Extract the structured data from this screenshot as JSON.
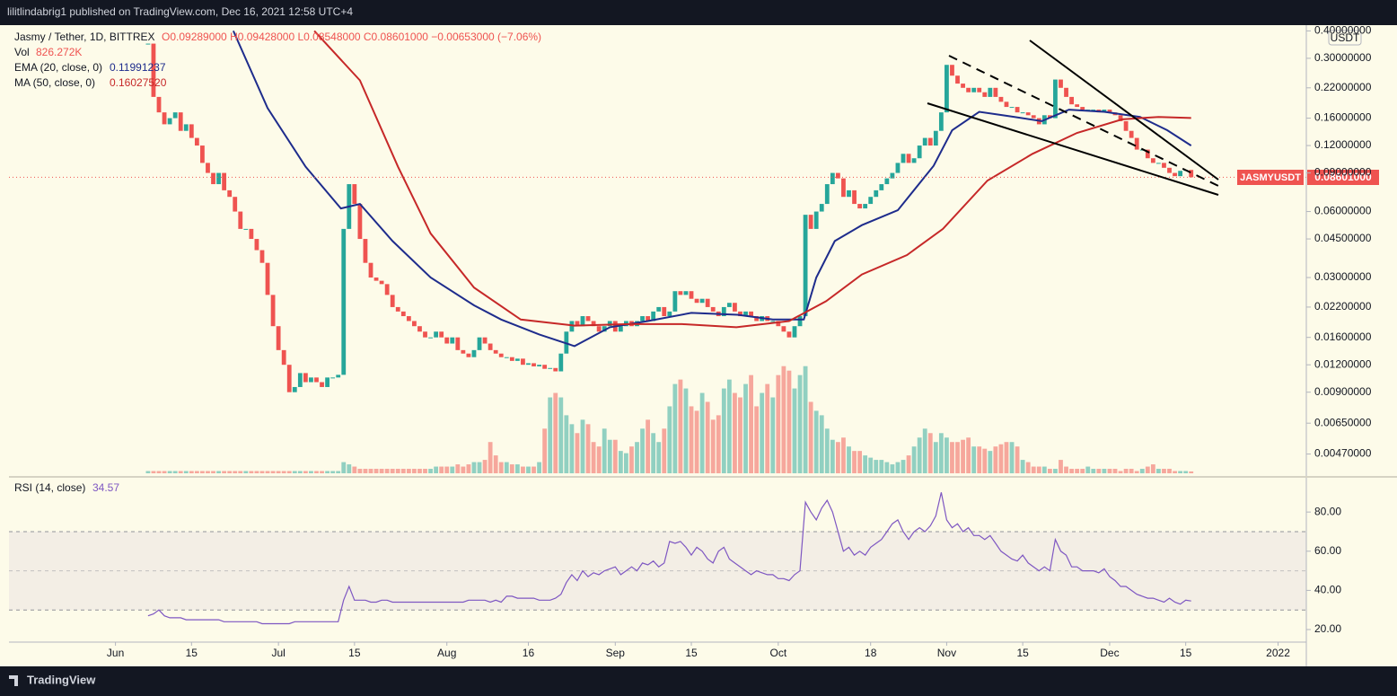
{
  "header": {
    "text": "lilitlindabrig1 published on TradingView.com, Dec 16, 2021 12:58 UTC+4"
  },
  "footer": {
    "brand": "TradingView"
  },
  "chart_data": [
    {
      "type": "candlestick",
      "legend": {
        "symbol": "Jasmy / Tether, 1D, BITTREX",
        "ohlc": "O0.09289000 H0.09428000 L0.08548000 C0.08601000 −0.00653000 (−7.06%)",
        "vol_name": "Vol",
        "vol_value": "826.272K"
      },
      "currency": "USDT",
      "price_label": {
        "symbol": "JASMYUSDT",
        "value": "0.08601000"
      },
      "y_scale": "log",
      "grid": false,
      "up_color": "#26a69a",
      "down_color": "#ef5350",
      "ylim": [
        0.00384,
        0.417
      ],
      "yticks": [
        {
          "value": 0.4,
          "label": "0.40000000"
        },
        {
          "value": 0.3,
          "label": "0.30000000"
        },
        {
          "value": 0.22,
          "label": "0.22000000"
        },
        {
          "value": 0.16,
          "label": "0.16000000"
        },
        {
          "value": 0.12,
          "label": "0.12000000"
        },
        {
          "value": 0.09,
          "label": "0.09000000"
        },
        {
          "value": 0.06,
          "label": "0.06000000"
        },
        {
          "value": 0.045,
          "label": "0.04500000"
        },
        {
          "value": 0.03,
          "label": "0.03000000"
        },
        {
          "value": 0.022,
          "label": "0.02200000"
        },
        {
          "value": 0.016,
          "label": "0.01600000"
        },
        {
          "value": 0.012,
          "label": "0.01200000"
        },
        {
          "value": 0.009,
          "label": "0.00900000"
        },
        {
          "value": 0.0065,
          "label": "0.00650000"
        },
        {
          "value": 0.0047,
          "label": "0.00470000"
        }
      ],
      "xlim": [
        -25.6,
        213.2
      ],
      "vlim": [
        0,
        200
      ],
      "close": [
        0.35,
        0.2,
        0.17,
        0.15,
        0.16,
        0.17,
        0.14,
        0.15,
        0.13,
        0.12,
        0.1,
        0.09,
        0.08,
        0.09,
        0.075,
        0.07,
        0.06,
        0.05,
        0.05,
        0.045,
        0.04,
        0.035,
        0.025,
        0.018,
        0.014,
        0.012,
        0.009,
        0.0095,
        0.011,
        0.01,
        0.0105,
        0.01,
        0.0095,
        0.0105,
        0.0105,
        0.0108,
        0.05,
        0.08,
        0.065,
        0.045,
        0.035,
        0.03,
        0.029,
        0.028,
        0.025,
        0.022,
        0.021,
        0.02,
        0.019,
        0.018,
        0.017,
        0.016,
        0.016,
        0.017,
        0.016,
        0.015,
        0.016,
        0.014,
        0.0135,
        0.013,
        0.014,
        0.016,
        0.015,
        0.014,
        0.0135,
        0.013,
        0.013,
        0.0125,
        0.0128,
        0.012,
        0.0122,
        0.0118,
        0.012,
        0.0115,
        0.0116,
        0.0112,
        0.0135,
        0.017,
        0.019,
        0.018,
        0.02,
        0.019,
        0.018,
        0.017,
        0.018,
        0.019,
        0.017,
        0.018,
        0.019,
        0.018,
        0.019,
        0.02,
        0.019,
        0.021,
        0.022,
        0.02,
        0.021,
        0.026,
        0.025,
        0.026,
        0.024,
        0.023,
        0.024,
        0.022,
        0.021,
        0.02,
        0.022,
        0.023,
        0.021,
        0.02,
        0.021,
        0.02,
        0.019,
        0.02,
        0.019,
        0.019,
        0.018,
        0.017,
        0.016,
        0.018,
        0.02,
        0.058,
        0.05,
        0.06,
        0.065,
        0.08,
        0.09,
        0.085,
        0.07,
        0.075,
        0.065,
        0.062,
        0.065,
        0.07,
        0.075,
        0.08,
        0.085,
        0.09,
        0.1,
        0.11,
        0.1,
        0.105,
        0.12,
        0.13,
        0.12,
        0.14,
        0.17,
        0.28,
        0.25,
        0.23,
        0.22,
        0.21,
        0.22,
        0.21,
        0.2,
        0.22,
        0.2,
        0.19,
        0.18,
        0.18,
        0.17,
        0.17,
        0.165,
        0.16,
        0.15,
        0.165,
        0.16,
        0.24,
        0.22,
        0.2,
        0.185,
        0.18,
        0.175,
        0.175,
        0.175,
        0.17,
        0.175,
        0.17,
        0.165,
        0.155,
        0.14,
        0.13,
        0.115,
        0.115,
        0.105,
        0.1,
        0.1,
        0.095,
        0.09,
        0.087,
        0.092,
        0.09289,
        0.08601
      ],
      "volume": [
        1,
        1,
        1,
        1,
        1,
        1,
        1,
        1,
        1,
        1,
        1,
        1,
        1,
        1,
        1,
        1,
        1,
        1,
        1,
        1,
        1,
        1,
        1,
        1,
        1,
        1,
        1,
        1,
        1,
        1,
        1,
        1,
        1,
        1,
        1,
        1,
        5,
        4,
        3,
        2,
        2,
        2,
        2,
        2,
        2,
        2,
        2,
        2,
        2,
        2,
        2,
        2,
        2,
        3,
        3,
        3,
        3,
        4,
        3,
        4,
        5,
        5,
        6,
        14,
        8,
        5,
        5,
        4,
        4,
        3,
        3,
        3,
        5,
        20,
        34,
        36,
        34,
        26,
        22,
        18,
        24,
        22,
        14,
        12,
        20,
        15,
        15,
        10,
        9,
        12,
        14,
        20,
        24,
        18,
        14,
        20,
        30,
        40,
        42,
        38,
        30,
        28,
        36,
        32,
        24,
        26,
        38,
        42,
        36,
        34,
        40,
        44,
        30,
        36,
        40,
        34,
        44,
        48,
        46,
        38,
        44,
        48,
        32,
        28,
        26,
        20,
        15,
        14,
        16,
        12,
        10,
        10,
        8,
        7,
        6,
        6,
        5,
        4,
        5,
        6,
        8,
        12,
        16,
        20,
        18,
        14,
        18,
        16,
        14,
        14,
        15,
        16,
        12,
        12,
        11,
        10,
        12,
        13,
        14,
        14,
        12,
        6,
        5,
        3,
        3,
        3,
        2,
        2,
        6,
        3,
        2,
        2,
        2,
        3,
        2,
        2,
        2,
        2,
        2,
        1,
        2,
        2,
        1,
        2,
        3,
        4,
        2,
        2,
        2,
        1,
        1,
        1,
        0.826
      ],
      "overlays": [
        {
          "name": "EMA (20, close, 0)",
          "color": "#1e2c8c",
          "x": [
            15.7,
            22,
            29,
            35.5,
            39,
            45,
            52,
            60,
            65,
            72,
            78.5,
            85,
            92,
            100,
            108.5,
            115,
            120.7,
            123,
            126.4,
            131.4,
            138,
            144.6,
            148,
            153,
            159.5,
            164.5,
            169.5,
            176,
            182.6,
            187.6,
            192
          ],
          "values": [
            0.4,
            0.178,
            0.096,
            0.062,
            0.065,
            0.044,
            0.03,
            0.0224,
            0.0193,
            0.0165,
            0.0146,
            0.0178,
            0.019,
            0.0207,
            0.0203,
            0.0193,
            0.0193,
            0.03,
            0.044,
            0.052,
            0.0608,
            0.097,
            0.141,
            0.171,
            0.162,
            0.155,
            0.175,
            0.171,
            0.162,
            0.141,
            0.11991237
          ]
        },
        {
          "name": "MA (50, close, 0)",
          "color": "#c62828",
          "value_label": "0.16027520",
          "x": [
            30.6,
            39,
            46,
            52,
            60,
            68.6,
            78.5,
            88.4,
            98.3,
            108.3,
            118,
            124.8,
            131.4,
            139.7,
            146.3,
            154.5,
            162.8,
            171,
            179.3,
            186,
            192
          ],
          "values": [
            0.4,
            0.238,
            0.096,
            0.0477,
            0.027,
            0.0193,
            0.0181,
            0.0184,
            0.0184,
            0.0178,
            0.019,
            0.0234,
            0.031,
            0.038,
            0.05,
            0.083,
            0.11,
            0.137,
            0.158,
            0.162,
            0.1602752
          ]
        }
      ]
    },
    {
      "type": "line",
      "grid": false,
      "series": [
        {
          "name": "RSI (14, close)",
          "color": "#7e57c2",
          "values": [
            27,
            28,
            30,
            27,
            26,
            26,
            26,
            25,
            25,
            25,
            25,
            25,
            25,
            25,
            24,
            24,
            24,
            24,
            24,
            24,
            24,
            23,
            23,
            23,
            23,
            23,
            23,
            24,
            24,
            24,
            24,
            24,
            24,
            24,
            24,
            24,
            35,
            42,
            35,
            35,
            35,
            34,
            34,
            35,
            35,
            34,
            34,
            34,
            34,
            34,
            34,
            34,
            34,
            34,
            34,
            34,
            34,
            34,
            34,
            35,
            35,
            35,
            35,
            34,
            35,
            34,
            37,
            37,
            36,
            36,
            36,
            36,
            35,
            35,
            35,
            36,
            38,
            44,
            48,
            45,
            50,
            47,
            49,
            48,
            50,
            51,
            52,
            48,
            50,
            52,
            50,
            54,
            53,
            55,
            52,
            54,
            65,
            64,
            65,
            62,
            58,
            62,
            60,
            56,
            54,
            60,
            62,
            56,
            54,
            52,
            50,
            48,
            50,
            49,
            48,
            48,
            46,
            46,
            45,
            48,
            50,
            85,
            80,
            76,
            82,
            86,
            80,
            70,
            60,
            62,
            58,
            60,
            58,
            62,
            64,
            66,
            70,
            74,
            76,
            70,
            66,
            70,
            72,
            70,
            73,
            78,
            90,
            76,
            72,
            74,
            70,
            72,
            68,
            68,
            66,
            68,
            64,
            60,
            58,
            56,
            55,
            58,
            54,
            52,
            50,
            52,
            50,
            66,
            60,
            58,
            52,
            52,
            50,
            50,
            50,
            49,
            51,
            47,
            45,
            42,
            42,
            40,
            38,
            37,
            36,
            36,
            35,
            34,
            36,
            34,
            33,
            35,
            34.57
          ]
        }
      ],
      "bands": {
        "lower": 30,
        "middle": 50,
        "upper": 70
      },
      "ylim": [
        14.5,
        95.2
      ],
      "yticks": [
        {
          "value": 80,
          "label": "80.00"
        },
        {
          "value": 60,
          "label": "60.00"
        },
        {
          "value": 40,
          "label": "40.00"
        },
        {
          "value": 20,
          "label": "20.00"
        }
      ],
      "xlim": [
        -25.6,
        213.2
      ],
      "xticks": [
        {
          "value": -6,
          "label": "Jun"
        },
        {
          "value": 8,
          "label": "15"
        },
        {
          "value": 24,
          "label": "Jul"
        },
        {
          "value": 38,
          "label": "15"
        },
        {
          "value": 55,
          "label": "Aug"
        },
        {
          "value": 70,
          "label": "16"
        },
        {
          "value": 86,
          "label": "Sep"
        },
        {
          "value": 100,
          "label": "15"
        },
        {
          "value": 116,
          "label": "Oct"
        },
        {
          "value": 133,
          "label": "18"
        },
        {
          "value": 147,
          "label": "Nov"
        },
        {
          "value": 161,
          "label": "15"
        },
        {
          "value": 177,
          "label": "Dec"
        },
        {
          "value": 191,
          "label": "15"
        },
        {
          "value": 208,
          "label": "2022"
        }
      ]
    }
  ]
}
